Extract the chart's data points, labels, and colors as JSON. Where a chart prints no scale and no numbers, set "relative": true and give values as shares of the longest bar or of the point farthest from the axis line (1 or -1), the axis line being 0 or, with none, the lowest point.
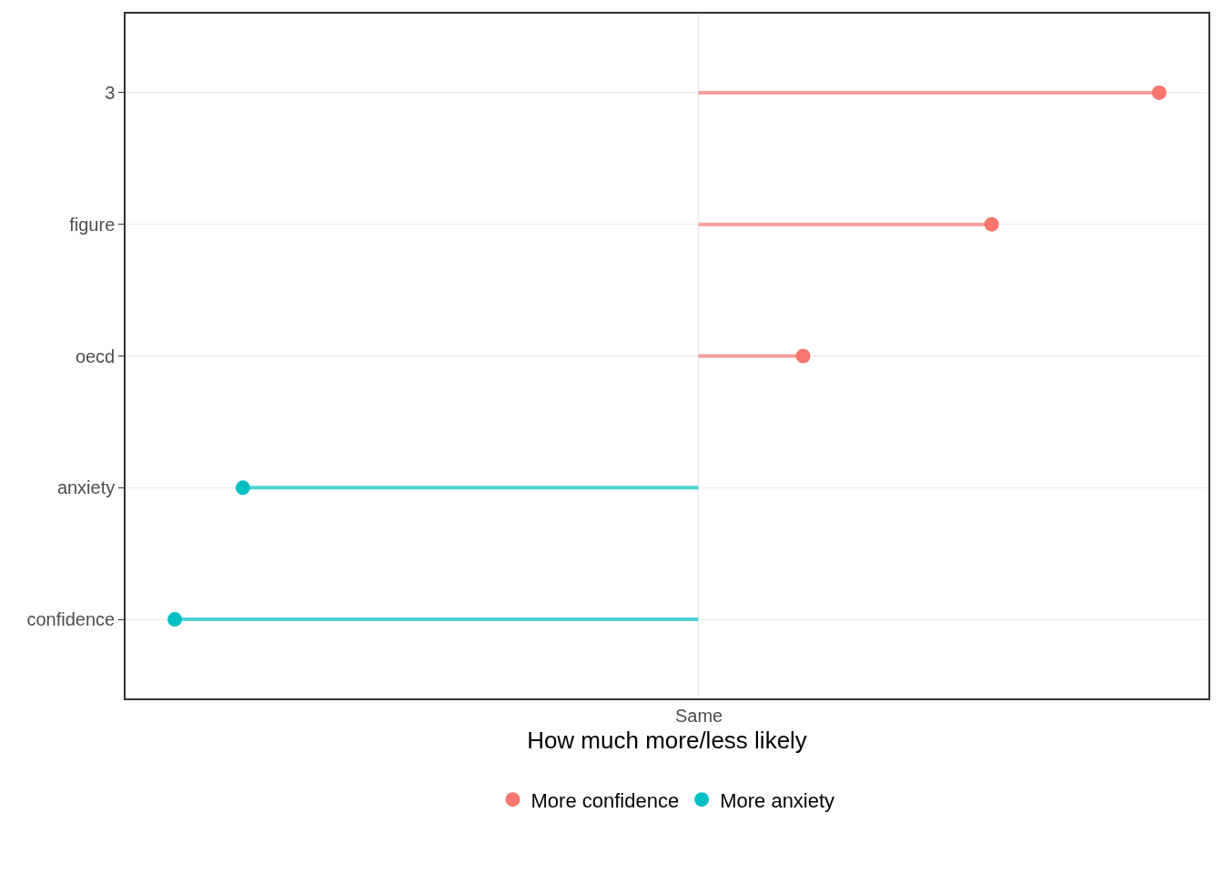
{
  "chart_data": {
    "type": "lollipop",
    "orientation": "horizontal",
    "relative": true,
    "xlabel": "How much more/less likely",
    "categories": [
      "3",
      "figure",
      "oecd",
      "anxiety",
      "confidence"
    ],
    "series": [
      {
        "name": "More confidence",
        "color": "#f8766d",
        "values": [
          0.88,
          0.56,
          0.2,
          null,
          null
        ]
      },
      {
        "name": "More anxiety",
        "color": "#00bfc4",
        "values": [
          null,
          null,
          null,
          -0.87,
          -1
        ]
      }
    ],
    "ref_lines": [
      {
        "axis": "x",
        "value": 0,
        "label": "Same",
        "color": "#ebebeb"
      }
    ],
    "grid": "y",
    "legend": "bottom",
    "marker": "circle"
  }
}
